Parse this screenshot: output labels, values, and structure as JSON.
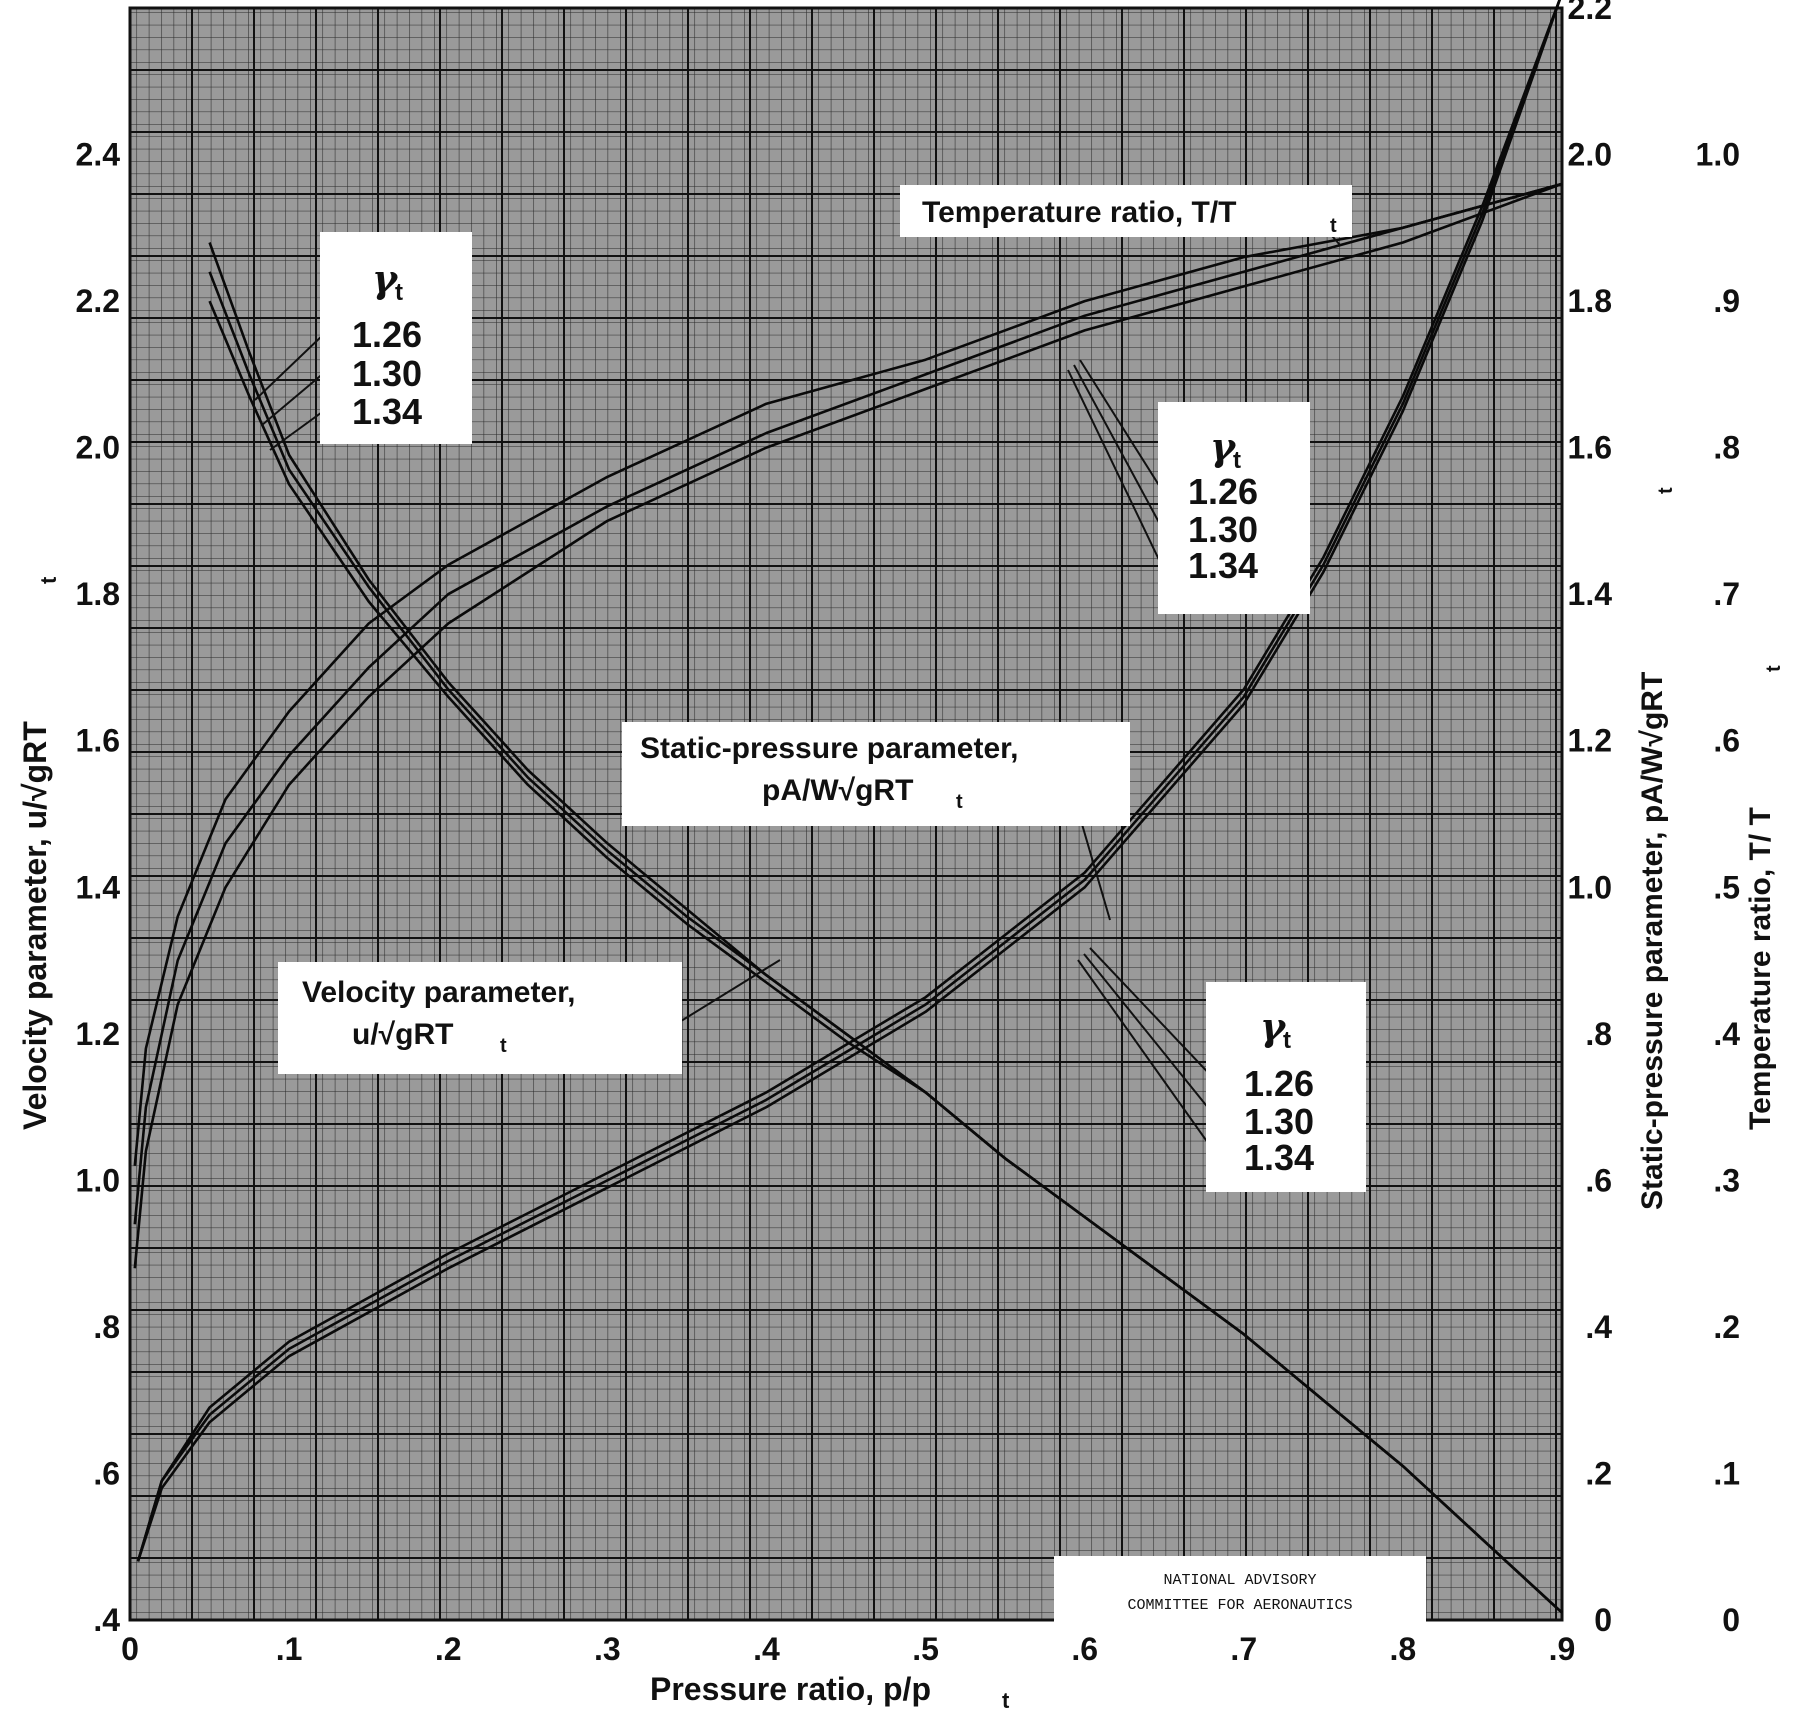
{
  "chart_data": {
    "type": "line",
    "xlabel": "Pressure ratio, p/p",
    "xlabel_sub": "t",
    "xlim": [
      0,
      0.9
    ],
    "x_ticks": [
      {
        "v": 0,
        "label": "0"
      },
      {
        "v": 0.1,
        "label": ".1"
      },
      {
        "v": 0.2,
        "label": ".2"
      },
      {
        "v": 0.3,
        "label": ".3"
      },
      {
        "v": 0.4,
        "label": ".4"
      },
      {
        "v": 0.5,
        "label": ".5"
      },
      {
        "v": 0.6,
        "label": ".6"
      },
      {
        "v": 0.7,
        "label": ".7"
      },
      {
        "v": 0.8,
        "label": ".8"
      },
      {
        "v": 0.9,
        "label": ".9"
      }
    ],
    "y_axes": {
      "velocity": {
        "label": "Velocity parameter, u/√gRT",
        "label_sub": "t",
        "range": [
          0.4,
          2.6
        ],
        "ticks": [
          {
            "v": 0.4,
            "label": ".4"
          },
          {
            "v": 0.6,
            "label": ".6"
          },
          {
            "v": 0.8,
            "label": ".8"
          },
          {
            "v": 1.0,
            "label": "1.0"
          },
          {
            "v": 1.2,
            "label": "1.2"
          },
          {
            "v": 1.4,
            "label": "1.4"
          },
          {
            "v": 1.6,
            "label": "1.6"
          },
          {
            "v": 1.8,
            "label": "1.8"
          },
          {
            "v": 2.0,
            "label": "2.0"
          },
          {
            "v": 2.2,
            "label": "2.2"
          },
          {
            "v": 2.4,
            "label": "2.4"
          }
        ]
      },
      "static_pressure": {
        "label": "Static-pressure parameter, pA/W√gRT",
        "label_sub": "t",
        "range": [
          0,
          2.2
        ],
        "ticks": [
          {
            "v": 0,
            "label": "0"
          },
          {
            "v": 0.2,
            "label": ".2"
          },
          {
            "v": 0.4,
            "label": ".4"
          },
          {
            "v": 0.6,
            "label": ".6"
          },
          {
            "v": 0.8,
            "label": ".8"
          },
          {
            "v": 1.0,
            "label": "1.0"
          },
          {
            "v": 1.2,
            "label": "1.2"
          },
          {
            "v": 1.4,
            "label": "1.4"
          },
          {
            "v": 1.6,
            "label": "1.6"
          },
          {
            "v": 1.8,
            "label": "1.8"
          },
          {
            "v": 2.0,
            "label": "2.0"
          },
          {
            "v": 2.2,
            "label": "2.2"
          }
        ]
      },
      "temperature": {
        "label": "Temperature ratio, T/ T",
        "label_sub": "t",
        "range": [
          0,
          1.1
        ],
        "ticks": [
          {
            "v": 0,
            "label": "0"
          },
          {
            "v": 0.1,
            "label": ".1"
          },
          {
            "v": 0.2,
            "label": ".2"
          },
          {
            "v": 0.3,
            "label": ".3"
          },
          {
            "v": 0.4,
            "label": ".4"
          },
          {
            "v": 0.5,
            "label": ".5"
          },
          {
            "v": 0.6,
            "label": ".6"
          },
          {
            "v": 0.7,
            "label": ".7"
          },
          {
            "v": 0.8,
            "label": ".8"
          },
          {
            "v": 0.9,
            "label": ".9"
          },
          {
            "v": 1.0,
            "label": "1.0"
          }
        ]
      }
    },
    "series": [
      {
        "group": "velocity",
        "axis": "velocity",
        "gamma": "1.26",
        "x": [
          0.05,
          0.075,
          0.1,
          0.15,
          0.2,
          0.25,
          0.3,
          0.35,
          0.4,
          0.45,
          0.5,
          0.55,
          0.6,
          0.65,
          0.7,
          0.75,
          0.8,
          0.85,
          0.9
        ],
        "y": [
          2.28,
          2.13,
          1.99,
          1.82,
          1.68,
          1.56,
          1.46,
          1.37,
          1.28,
          1.2,
          1.12,
          1.03,
          0.95,
          0.87,
          0.79,
          0.7,
          0.61,
          0.51,
          0.41
        ]
      },
      {
        "group": "velocity",
        "axis": "velocity",
        "gamma": "1.30",
        "x": [
          0.05,
          0.075,
          0.1,
          0.15,
          0.2,
          0.25,
          0.3,
          0.35,
          0.4,
          0.45,
          0.5,
          0.55,
          0.6,
          0.65,
          0.7,
          0.75,
          0.8,
          0.85,
          0.9
        ],
        "y": [
          2.24,
          2.1,
          1.97,
          1.81,
          1.67,
          1.55,
          1.45,
          1.36,
          1.28,
          1.2,
          1.12,
          1.03,
          0.95,
          0.87,
          0.79,
          0.7,
          0.61,
          0.51,
          0.41
        ]
      },
      {
        "group": "velocity",
        "axis": "velocity",
        "gamma": "1.34",
        "x": [
          0.05,
          0.075,
          0.1,
          0.15,
          0.2,
          0.25,
          0.3,
          0.35,
          0.4,
          0.45,
          0.5,
          0.55,
          0.6,
          0.65,
          0.7,
          0.75,
          0.8,
          0.85,
          0.9
        ],
        "y": [
          2.2,
          2.07,
          1.95,
          1.79,
          1.66,
          1.54,
          1.44,
          1.35,
          1.27,
          1.19,
          1.12,
          1.03,
          0.95,
          0.87,
          0.79,
          0.7,
          0.61,
          0.51,
          0.41
        ]
      },
      {
        "group": "temperature",
        "axis": "temperature",
        "gamma": "1.26",
        "x": [
          0.003,
          0.01,
          0.03,
          0.06,
          0.1,
          0.15,
          0.2,
          0.3,
          0.4,
          0.5,
          0.6,
          0.7,
          0.8,
          0.9
        ],
        "y": [
          0.31,
          0.39,
          0.48,
          0.56,
          0.62,
          0.68,
          0.72,
          0.78,
          0.83,
          0.86,
          0.9,
          0.93,
          0.95,
          0.98
        ]
      },
      {
        "group": "temperature",
        "axis": "temperature",
        "gamma": "1.30",
        "x": [
          0.003,
          0.01,
          0.03,
          0.06,
          0.1,
          0.15,
          0.2,
          0.3,
          0.4,
          0.5,
          0.6,
          0.7,
          0.8,
          0.9
        ],
        "y": [
          0.27,
          0.35,
          0.45,
          0.53,
          0.59,
          0.65,
          0.7,
          0.76,
          0.81,
          0.85,
          0.89,
          0.92,
          0.95,
          0.98
        ]
      },
      {
        "group": "temperature",
        "axis": "temperature",
        "gamma": "1.34",
        "x": [
          0.003,
          0.01,
          0.03,
          0.06,
          0.1,
          0.15,
          0.2,
          0.3,
          0.4,
          0.5,
          0.6,
          0.7,
          0.8,
          0.9
        ],
        "y": [
          0.24,
          0.32,
          0.42,
          0.5,
          0.57,
          0.63,
          0.68,
          0.75,
          0.8,
          0.84,
          0.88,
          0.91,
          0.94,
          0.98
        ]
      },
      {
        "group": "static_pressure",
        "axis": "static_pressure",
        "gamma": "1.26",
        "x": [
          0.005,
          0.02,
          0.05,
          0.1,
          0.15,
          0.2,
          0.3,
          0.4,
          0.5,
          0.6,
          0.7,
          0.75,
          0.8,
          0.85,
          0.9
        ],
        "y": [
          0.08,
          0.19,
          0.29,
          0.38,
          0.44,
          0.5,
          0.61,
          0.72,
          0.85,
          1.02,
          1.27,
          1.45,
          1.67,
          1.93,
          2.22
        ]
      },
      {
        "group": "static_pressure",
        "axis": "static_pressure",
        "gamma": "1.30",
        "x": [
          0.005,
          0.02,
          0.05,
          0.1,
          0.15,
          0.2,
          0.3,
          0.4,
          0.5,
          0.6,
          0.7,
          0.75,
          0.8,
          0.85,
          0.9
        ],
        "y": [
          0.08,
          0.19,
          0.28,
          0.37,
          0.43,
          0.49,
          0.6,
          0.71,
          0.84,
          1.01,
          1.26,
          1.44,
          1.66,
          1.92,
          2.22
        ]
      },
      {
        "group": "static_pressure",
        "axis": "static_pressure",
        "gamma": "1.34",
        "x": [
          0.005,
          0.02,
          0.05,
          0.1,
          0.15,
          0.2,
          0.3,
          0.4,
          0.5,
          0.6,
          0.7,
          0.75,
          0.8,
          0.85,
          0.9
        ],
        "y": [
          0.08,
          0.18,
          0.27,
          0.36,
          0.42,
          0.48,
          0.59,
          0.7,
          0.83,
          1.0,
          1.25,
          1.43,
          1.65,
          1.91,
          2.22
        ]
      }
    ],
    "annotations": {
      "temperature_label": {
        "text": "Temperature ratio, T/T",
        "sub": "t"
      },
      "static_label": {
        "line1": "Static-pressure parameter,",
        "line2": "pA/W√gRT",
        "sub": "t"
      },
      "velocity_label": {
        "line1": "Velocity parameter,",
        "line2": "u/√gRT",
        "sub": "t"
      },
      "gamma_box": {
        "symbol": "γ",
        "sub": "t",
        "values": [
          "1.26",
          "1.30",
          "1.34"
        ]
      }
    },
    "grid": true
  },
  "stamp": {
    "line1": "NATIONAL ADVISORY",
    "line2": "COMMITTEE FOR AERONAUTICS"
  }
}
